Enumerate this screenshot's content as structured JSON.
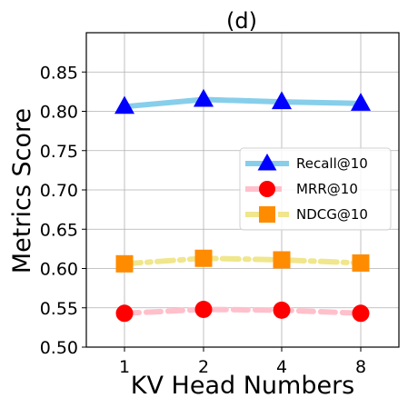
{
  "chart_data": {
    "type": "line",
    "title": "(d)",
    "xlabel": "KV Head Numbers",
    "ylabel": "Metrics Score",
    "categories": [
      "1",
      "2",
      "4",
      "8"
    ],
    "ylim": [
      0.5,
      0.9
    ],
    "yticks": [
      "0.50",
      "0.55",
      "0.60",
      "0.65",
      "0.70",
      "0.75",
      "0.80",
      "0.85"
    ],
    "grid": true,
    "legend_position": "center-right",
    "series": [
      {
        "name": "Recall@10",
        "values": [
          0.806,
          0.815,
          0.812,
          0.81
        ],
        "color": "#87ceeb",
        "marker_color": "#0000ff",
        "marker": "triangle",
        "line_style": "solid"
      },
      {
        "name": "MRR@10",
        "values": [
          0.543,
          0.548,
          0.547,
          0.543
        ],
        "color": "#ffc0cb",
        "marker_color": "#ff0000",
        "marker": "circle",
        "line_style": "dashed"
      },
      {
        "name": "NDCG@10",
        "values": [
          0.606,
          0.613,
          0.611,
          0.607
        ],
        "color": "#f0e68c",
        "marker_color": "#ff8c00",
        "marker": "square",
        "line_style": "dashdot"
      }
    ]
  }
}
